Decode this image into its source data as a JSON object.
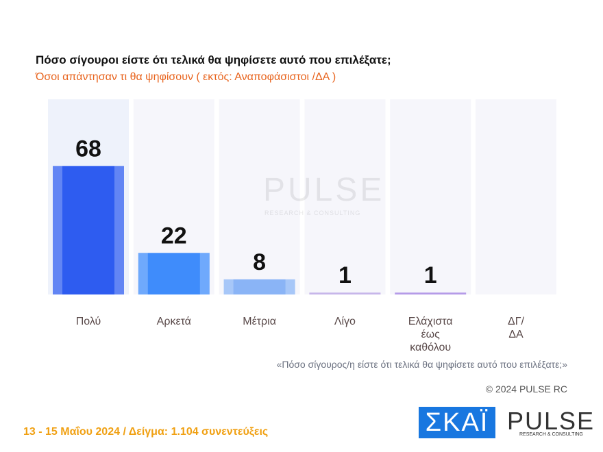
{
  "chart_data": {
    "type": "bar",
    "title": "Πόσο σίγουροι είστε ότι τελικά θα ψηφίσετε αυτό που επιλέξατε;",
    "subtitle": "Όσοι απάντησαν τι θα ψηφίσουν ( εκτός: Αναποφάσιστοι /ΔΑ )",
    "categories": [
      "Πολύ",
      "Αρκετά",
      "Μέτρια",
      "Λίγο",
      "Ελάχιστα\nέως\nκαθόλου",
      "ΔΓ/\nΔΑ"
    ],
    "values": [
      68,
      22,
      8,
      1,
      1,
      null
    ],
    "colors": [
      "#2e5cf0",
      "#3f8cfb",
      "#8ab4f6",
      "#c7b6ea",
      "#b59be8",
      "#cccccc"
    ],
    "note": "«Πόσο σίγουρος/η είστε ότι τελικά θα ψηφίσετε αυτό που επιλέξατε;»",
    "copyright": "© 2024 PULSE RC",
    "footer": "13 - 15  Μαΐου 2024  /  Δείγμα:  1.104 συνεντεύξεις",
    "watermark": "PULSE",
    "watermark_subtitle": "RESEARCH & CONSULTING",
    "logo_left": "ΣΚΑΪ",
    "logo_right": "PULSE",
    "logo_right_subtitle": "RESEARCH & CONSULTING"
  }
}
